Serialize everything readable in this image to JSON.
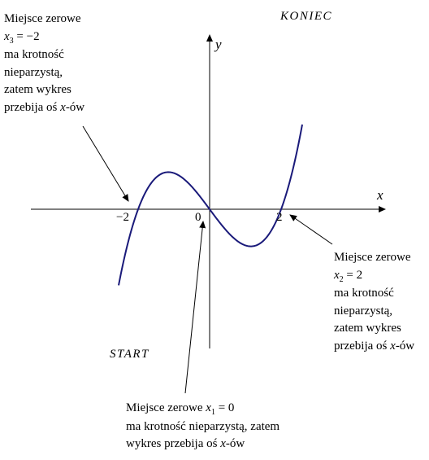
{
  "labels": {
    "koniec": "KONIEC",
    "start": "START",
    "y_axis": "y",
    "x_axis": "x",
    "tick_neg2": "−2",
    "tick_zero": "0",
    "tick_two": "2"
  },
  "note_left": {
    "line1": "Miejsce zerowe",
    "var": "x",
    "sub": "3",
    "eq": " = −2",
    "line3": "ma krotność",
    "line4": "nieparzystą,",
    "line5": "zatem wykres",
    "line6_prefix": "przebija oś ",
    "line6_var": "x",
    "line6_suffix": "-ów"
  },
  "note_right": {
    "line1": "Miejsce zerowe",
    "var": "x",
    "sub": "2",
    "eq": " = 2",
    "line3": "ma krotność",
    "line4": "nieparzystą,",
    "line5": "zatem wykres",
    "line6_prefix": "przebija oś ",
    "line6_var": "x",
    "line6_suffix": "-ów"
  },
  "note_bottom": {
    "line1_prefix": "Miejsce zerowe ",
    "var": "x",
    "sub": "1",
    "eq": " = 0",
    "line2": "ma krotność nieparzystą, zatem",
    "line3_prefix": "wykres przebija oś ",
    "line3_var": "x",
    "line3_suffix": "-ów"
  },
  "colors": {
    "curve": "#1a1a7a",
    "axis": "#000000"
  }
}
